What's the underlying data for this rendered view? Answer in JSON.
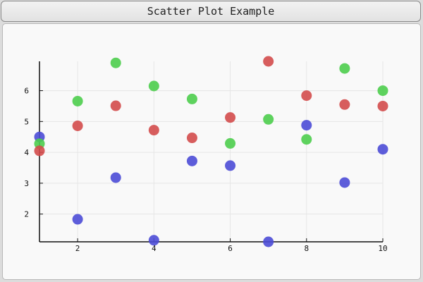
{
  "window": {
    "title": "Scatter Plot Example"
  },
  "chart_data": {
    "type": "scatter",
    "title": "",
    "xlabel": "",
    "ylabel": "",
    "xlim": [
      1,
      10
    ],
    "ylim": [
      1.1,
      6.95
    ],
    "xticks": [
      2,
      4,
      6,
      8,
      10
    ],
    "yticks": [
      2,
      3,
      4,
      5,
      6
    ],
    "grid": true,
    "legend": "none",
    "series": [
      {
        "color": "#4b4bd6",
        "points": [
          [
            1,
            4.5
          ],
          [
            2,
            1.83
          ],
          [
            3,
            3.18
          ],
          [
            4,
            1.15
          ],
          [
            5,
            3.72
          ],
          [
            6,
            3.57
          ],
          [
            7,
            1.1
          ],
          [
            8,
            4.88
          ],
          [
            9,
            3.02
          ],
          [
            10,
            4.1
          ]
        ]
      },
      {
        "color": "#4ccd4c",
        "points": [
          [
            1,
            4.28
          ],
          [
            2,
            5.66
          ],
          [
            3,
            6.9
          ],
          [
            4,
            6.15
          ],
          [
            5,
            5.73
          ],
          [
            6,
            4.29
          ],
          [
            7,
            5.07
          ],
          [
            8,
            4.42
          ],
          [
            9,
            6.72
          ],
          [
            10,
            6.0
          ]
        ]
      },
      {
        "color": "#d34b4b",
        "points": [
          [
            1,
            4.05
          ],
          [
            2,
            4.86
          ],
          [
            3,
            5.51
          ],
          [
            4,
            4.72
          ],
          [
            5,
            4.47
          ],
          [
            6,
            5.13
          ],
          [
            7,
            6.95
          ],
          [
            8,
            5.84
          ],
          [
            9,
            5.55
          ],
          [
            10,
            5.5
          ]
        ]
      }
    ]
  }
}
